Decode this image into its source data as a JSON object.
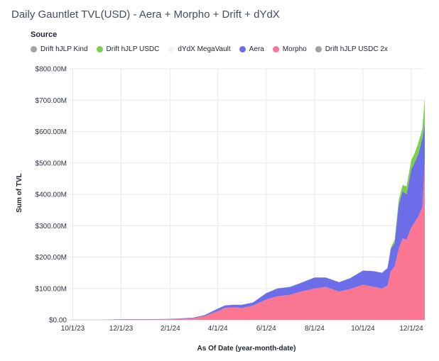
{
  "title": "Daily Gauntlet TVL(USD) - Aera + Morpho + Drift + dYdX",
  "chart_data": {
    "type": "area",
    "title": "Daily Gauntlet TVL(USD) - Aera + Morpho + Drift + dYdX",
    "legend_title": "Source",
    "legend_position": "top-left",
    "legend": [
      {
        "name": "Drift hJLP Kind",
        "color": "#a0a0a8"
      },
      {
        "name": "Drift hJLP USDC",
        "color": "#7bd14b"
      },
      {
        "name": "dYdX MegaVault",
        "color": "#eeeeee"
      },
      {
        "name": "Aera",
        "color": "#6b6ee8"
      },
      {
        "name": "Morpho",
        "color": "#fb7791"
      },
      {
        "name": "Drift hJLP USDC 2x",
        "color": "#a0a0a8"
      }
    ],
    "xlabel": "As Of Date (year-month-date)",
    "ylabel": "Sum of TVL",
    "x_ticks": [
      "10/1/23",
      "12/1/23",
      "2/1/24",
      "4/1/24",
      "6/1/24",
      "8/1/24",
      "10/1/24",
      "12/1/24"
    ],
    "y_ticks": [
      "$0.00",
      "$100.00M",
      "$200.00M",
      "$300.00M",
      "$400.00M",
      "$500.00M",
      "$600.00M",
      "$700.00M",
      "$800.00M"
    ],
    "ylim": [
      0,
      800
    ],
    "xlim": [
      "2023-09-27",
      "2024-12-18"
    ],
    "grid": true,
    "stacked": true,
    "unit": "$M",
    "x": [
      "2023-10-01",
      "2023-11-01",
      "2023-12-01",
      "2024-01-01",
      "2024-02-01",
      "2024-03-01",
      "2024-03-15",
      "2024-04-01",
      "2024-04-10",
      "2024-04-20",
      "2024-05-01",
      "2024-05-15",
      "2024-06-01",
      "2024-06-15",
      "2024-07-01",
      "2024-07-15",
      "2024-08-01",
      "2024-08-15",
      "2024-09-01",
      "2024-09-15",
      "2024-10-01",
      "2024-10-15",
      "2024-10-25",
      "2024-11-01",
      "2024-11-05",
      "2024-11-10",
      "2024-11-15",
      "2024-11-20",
      "2024-11-25",
      "2024-12-01",
      "2024-12-05",
      "2024-12-10",
      "2024-12-15",
      "2024-12-18"
    ],
    "series": [
      {
        "name": "Morpho",
        "color": "#fb7791",
        "values": [
          0,
          0,
          1,
          1,
          2,
          5,
          12,
          28,
          38,
          40,
          38,
          45,
          65,
          75,
          80,
          90,
          100,
          105,
          90,
          98,
          112,
          105,
          100,
          110,
          155,
          170,
          225,
          260,
          255,
          295,
          310,
          330,
          360,
          505
        ]
      },
      {
        "name": "Aera",
        "color": "#6b6ee8",
        "values": [
          0,
          0,
          1,
          1,
          1,
          2,
          3,
          8,
          8,
          8,
          10,
          10,
          20,
          25,
          25,
          28,
          35,
          30,
          30,
          35,
          45,
          50,
          50,
          55,
          70,
          75,
          140,
          150,
          145,
          185,
          190,
          200,
          220,
          120
        ]
      },
      {
        "name": "Drift hJLP USDC",
        "color": "#7bd14b",
        "values": [
          0,
          0,
          0,
          0,
          0,
          0,
          0,
          0,
          0,
          0,
          0,
          0,
          0,
          0,
          0,
          0,
          0,
          0,
          0,
          0,
          0,
          0,
          0,
          0,
          5,
          10,
          15,
          20,
          25,
          30,
          30,
          35,
          30,
          85
        ]
      },
      {
        "name": "dYdX MegaVault",
        "color": "#eeeeee",
        "values": [
          0,
          0,
          0,
          0,
          0,
          0,
          0,
          0,
          0,
          0,
          0,
          0,
          0,
          0,
          0,
          0,
          0,
          0,
          0,
          0,
          0,
          0,
          0,
          0,
          0,
          0,
          0,
          0,
          0,
          0,
          0,
          0,
          0,
          10
        ]
      }
    ]
  }
}
